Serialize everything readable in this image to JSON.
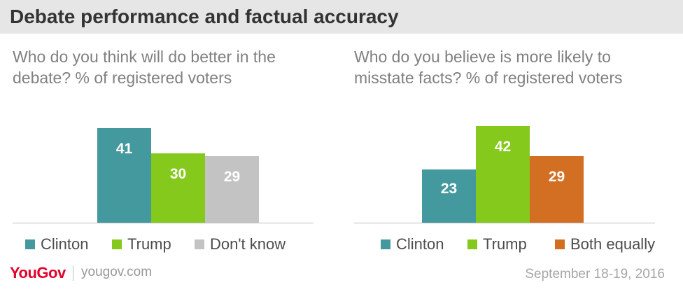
{
  "title": "Debate performance and factual accuracy",
  "colors": {
    "teal": "#44999f",
    "green": "#84c91c",
    "gray": "#c3c3c3",
    "orange": "#d36f22",
    "brand_red": "#e4002b"
  },
  "chart_data": [
    {
      "type": "bar",
      "title": "Who do you think will do better in the debate? % of registered voters",
      "categories": [
        "Clinton",
        "Trump",
        "Don't know"
      ],
      "values": [
        41,
        30,
        29
      ],
      "colors": [
        "#44999f",
        "#84c91c",
        "#c3c3c3"
      ],
      "legend": [
        "Clinton",
        "Trump",
        "Don't know"
      ],
      "legend_position": "bottom"
    },
    {
      "type": "bar",
      "title": "Who do you believe is more likely to misstate facts? % of registered voters",
      "categories": [
        "Clinton",
        "Trump",
        "Both equally"
      ],
      "values": [
        23,
        42,
        29
      ],
      "colors": [
        "#44999f",
        "#84c91c",
        "#d36f22"
      ],
      "legend": [
        "Clinton",
        "Trump",
        "Both equally"
      ],
      "legend_position": "bottom"
    }
  ],
  "footer": {
    "brand": "YouGov",
    "url": "yougov.com",
    "date": "September 18-19, 2016"
  }
}
